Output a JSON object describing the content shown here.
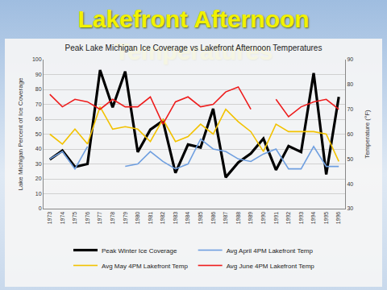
{
  "heading": "Lakefront Afternoon Temperatures",
  "chart_data": {
    "type": "line",
    "title": "Peak Lake Michigan Ice Coverage vs Lakefront Afternoon Temperatures",
    "y_label": "Lake Michigan Percent of Ice Coverage",
    "y2_label": "Temperature (°F)",
    "categories": [
      "1973",
      "1974",
      "1975",
      "1976",
      "1977",
      "1978",
      "1979",
      "1980",
      "1981",
      "1982",
      "1983",
      "1984",
      "1985",
      "1986",
      "1987",
      "1988",
      "1989",
      "1990",
      "1991",
      "1992",
      "1993",
      "1994",
      "1995",
      "1996"
    ],
    "series": [
      {
        "name": "Peak Winter Ice Coverage",
        "color": "#000000",
        "values": [
          33,
          39,
          28,
          30,
          93,
          68,
          92,
          38,
          53,
          59,
          24,
          43,
          41,
          67,
          21,
          31,
          37,
          47,
          26,
          42,
          38,
          91,
          23,
          75
        ]
      },
      {
        "name": "Avg April 4PM Lakefront Temp",
        "color": "#6f9fe0",
        "axis": "y2",
        "values": [
          50,
          53,
          46,
          55,
          null,
          null,
          47,
          48,
          53,
          49,
          46,
          48,
          58,
          54,
          53,
          50,
          49,
          52,
          54,
          46,
          46,
          55,
          47,
          47
        ]
      },
      {
        "name": "Avg May 4PM Lakefront Temp",
        "color": "#f2c200",
        "axis": "y2",
        "values": [
          60,
          56,
          62,
          56,
          71,
          62,
          63,
          62,
          57,
          66,
          57,
          59,
          64,
          60,
          70,
          65,
          61,
          53,
          64,
          61,
          61,
          61,
          60,
          49
        ]
      },
      {
        "name": "Avg June 4PM Lakefront Temp",
        "color": "#ee1c1c",
        "axis": "y2",
        "values": [
          76,
          71,
          74,
          73,
          70,
          74,
          71,
          71,
          75,
          64,
          73,
          75,
          71,
          72,
          77,
          79,
          70,
          null,
          74,
          67,
          71,
          73,
          74,
          70
        ]
      }
    ],
    "ylim": [
      0,
      100
    ],
    "yticks": [
      0,
      10,
      20,
      30,
      40,
      50,
      60,
      70,
      80,
      90,
      100
    ],
    "y2lim": [
      30,
      90
    ],
    "y2ticks": [
      30,
      40,
      50,
      60,
      70,
      80,
      90
    ],
    "grid": true,
    "legend": "bottom"
  }
}
